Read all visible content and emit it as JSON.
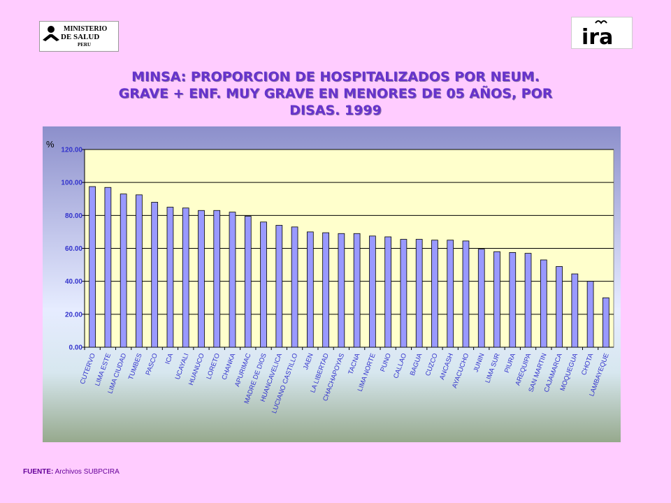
{
  "header": {
    "logo_left_text": [
      "MINISTERIO",
      "DE SALUD",
      "PERU"
    ],
    "logo_right_text": "ira",
    "title_lines": [
      "MINSA: PROPORCION  DE HOSPITALIZADOS POR NEUM.",
      "GRAVE + ENF. MUY GRAVE EN MENORES DE 05 AÑOS, POR",
      "DISAS. 1999"
    ]
  },
  "footer": {
    "source_label": "FUENTE:",
    "source_text": " Archivos SUBPCIRA"
  },
  "colors": {
    "background": "#ffccff",
    "title": "#6633cc",
    "bar": "#9999ff",
    "plot_area": "#ffffcc",
    "axis_text": "#3333cc"
  },
  "chart_data": {
    "type": "bar",
    "title": "MINSA: PROPORCION  DE HOSPITALIZADOS POR NEUM. GRAVE + ENF. MUY GRAVE EN MENORES DE 05 AÑOS, POR DISAS. 1999",
    "ylabel": "%",
    "xlabel": "",
    "ylim": [
      0,
      120
    ],
    "yticks": [
      "0.00",
      "20.00",
      "40.00",
      "60.00",
      "80.00",
      "100.00",
      "120.00"
    ],
    "grid": true,
    "legend": "none",
    "categories": [
      "CUTERVO",
      "LIMA ESTE",
      "LIMA CIUDAD",
      "TUMBES",
      "PASCO",
      "ICA",
      "UCAYALI",
      "HUANUCO",
      "LORETO",
      "CHANKA",
      "APURIMAC",
      "MADRE DE DIOS",
      "HUANCAVELICA",
      "LUCIANO CASTILLO",
      "JAEN",
      "LA LIBERTAD",
      "CHACHAPOYAS",
      "TACNA",
      "LIMA NORTE",
      "PUNO",
      "CALLAO",
      "BAGUA",
      "CUZCO",
      "ANCASH",
      "AYACUCHO",
      "JUNIN",
      "LIMA SUR",
      "PIURA",
      "AREQUIPA",
      "SAN MARTIN",
      "CAJAMARCA",
      "MOQUEGUA",
      "CHOTA",
      "LAMBAYEQUE"
    ],
    "values": [
      97.5,
      97.0,
      93.0,
      92.5,
      88.0,
      85.0,
      84.5,
      83.0,
      83.0,
      82.0,
      79.5,
      76.0,
      74.0,
      73.0,
      70.0,
      69.5,
      69.0,
      69.0,
      67.5,
      67.0,
      65.5,
      65.5,
      65.0,
      65.0,
      64.5,
      59.5,
      58.0,
      57.5,
      57.0,
      53.0,
      49.0,
      44.5,
      40.0,
      30.0
    ]
  }
}
